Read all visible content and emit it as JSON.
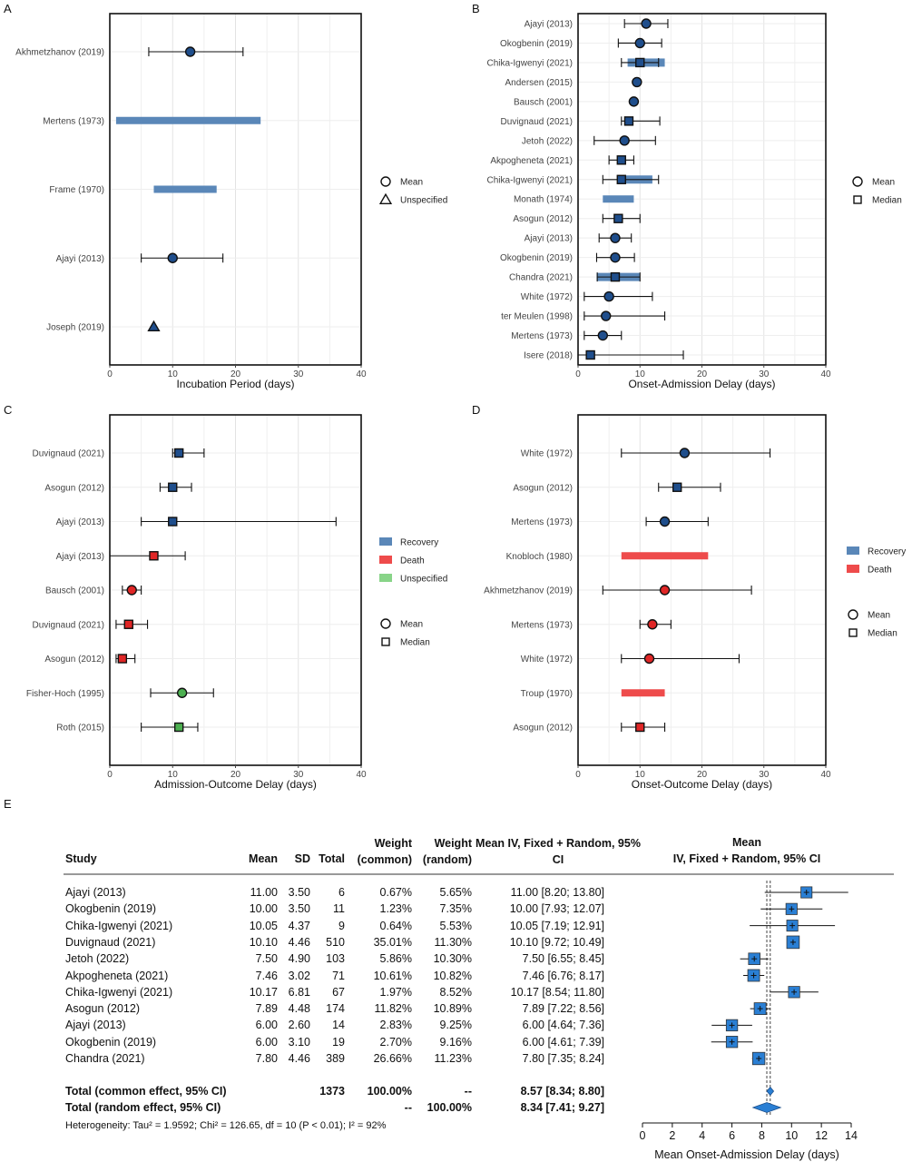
{
  "panel_letters": [
    "A",
    "B",
    "C",
    "D",
    "E"
  ],
  "chart_data": [
    {
      "id": "A",
      "type": "interval-forest",
      "panel_label": "A",
      "xlabel": "Incubation Period (days)",
      "xlim": [
        0,
        40
      ],
      "xticks": [
        0,
        10,
        20,
        30,
        40
      ],
      "grid": true,
      "legend": {
        "placement": "right",
        "shape_items": [
          {
            "shape": "circle",
            "label": "Mean"
          },
          {
            "shape": "triangle",
            "label": "Unspecified"
          }
        ],
        "color_items": []
      },
      "rows": [
        {
          "study": "Akhmetzhanov (2019)",
          "kind": "point",
          "value": 12.8,
          "shape": "circle",
          "lo": 6.2,
          "hi": 21.2,
          "color": "#1f4e8c"
        },
        {
          "study": "Mertens (1973)",
          "kind": "range",
          "lo": 1,
          "hi": 24,
          "color": "#5a87b8"
        },
        {
          "study": "Frame (1970)",
          "kind": "range",
          "lo": 7,
          "hi": 17,
          "color": "#5a87b8"
        },
        {
          "study": "Ajayi (2013)",
          "kind": "point",
          "value": 10,
          "shape": "circle",
          "lo": 5,
          "hi": 18,
          "color": "#1f4e8c"
        },
        {
          "study": "Joseph (2019)",
          "kind": "point",
          "value": 7,
          "shape": "triangle",
          "color": "#1f4e8c"
        }
      ]
    },
    {
      "id": "B",
      "type": "interval-forest",
      "panel_label": "B",
      "xlabel": "Onset-Admission Delay (days)",
      "xlim": [
        0,
        40
      ],
      "xticks": [
        0,
        10,
        20,
        30,
        40
      ],
      "grid": true,
      "legend": {
        "placement": "right",
        "shape_items": [
          {
            "shape": "circle",
            "label": "Mean"
          },
          {
            "shape": "square",
            "label": "Median"
          }
        ],
        "color_items": []
      },
      "rows": [
        {
          "study": "Ajayi (2013)",
          "kind": "point",
          "value": 11,
          "shape": "circle",
          "lo": 7.5,
          "hi": 14.5,
          "color": "#1f4e8c"
        },
        {
          "study": "Okogbenin (2019)",
          "kind": "point",
          "value": 10,
          "shape": "circle",
          "lo": 6.5,
          "hi": 13.5,
          "color": "#1f4e8c"
        },
        {
          "study": "Chika-Igwenyi (2021)",
          "kind": "point",
          "value": 10,
          "shape": "square",
          "lo": 7,
          "hi": 13,
          "range_lo": 8,
          "range_hi": 14,
          "color": "#1f4e8c"
        },
        {
          "study": "Andersen (2015)",
          "kind": "point",
          "value": 9.5,
          "shape": "circle",
          "color": "#1f4e8c"
        },
        {
          "study": "Bausch (2001)",
          "kind": "point",
          "value": 9,
          "shape": "circle",
          "color": "#1f4e8c"
        },
        {
          "study": "Duvignaud (2021)",
          "kind": "point",
          "value": 8.2,
          "shape": "square",
          "lo": 7,
          "hi": 13.2,
          "color": "#1f4e8c"
        },
        {
          "study": "Jetoh (2022)",
          "kind": "point",
          "value": 7.5,
          "shape": "circle",
          "lo": 2.6,
          "hi": 12.5,
          "color": "#1f4e8c"
        },
        {
          "study": "Akpogheneta (2021)",
          "kind": "point",
          "value": 7,
          "shape": "square",
          "lo": 5,
          "hi": 9,
          "color": "#1f4e8c"
        },
        {
          "study": "Chika-Igwenyi (2021)",
          "kind": "point",
          "value": 7,
          "shape": "square",
          "lo": 4,
          "hi": 13,
          "range_lo": 7,
          "range_hi": 12,
          "color": "#1f4e8c"
        },
        {
          "study": "Monath (1974)",
          "kind": "range",
          "lo": 4,
          "hi": 9,
          "color": "#5a87b8"
        },
        {
          "study": "Asogun (2012)",
          "kind": "point",
          "value": 6.5,
          "shape": "square",
          "lo": 4,
          "hi": 10,
          "color": "#1f4e8c"
        },
        {
          "study": "Ajayi (2013)",
          "kind": "point",
          "value": 6,
          "shape": "circle",
          "lo": 3.4,
          "hi": 8.6,
          "color": "#1f4e8c"
        },
        {
          "study": "Okogbenin (2019)",
          "kind": "point",
          "value": 6,
          "shape": "circle",
          "lo": 3,
          "hi": 9.1,
          "color": "#1f4e8c"
        },
        {
          "study": "Chandra (2021)",
          "kind": "point",
          "value": 6,
          "shape": "square",
          "lo": 3.1,
          "hi": 10,
          "range_lo": 3,
          "range_hi": 10,
          "color": "#1f4e8c"
        },
        {
          "study": "White (1972)",
          "kind": "point",
          "value": 5,
          "shape": "circle",
          "lo": 1,
          "hi": 12,
          "color": "#1f4e8c"
        },
        {
          "study": "ter Meulen (1998)",
          "kind": "point",
          "value": 4.5,
          "shape": "circle",
          "lo": 1,
          "hi": 14,
          "color": "#1f4e8c"
        },
        {
          "study": "Mertens (1973)",
          "kind": "point",
          "value": 4,
          "shape": "circle",
          "lo": 1,
          "hi": 7,
          "color": "#1f4e8c"
        },
        {
          "study": "Isere (2018)",
          "kind": "point",
          "value": 2,
          "shape": "square",
          "lo": 0,
          "hi": 17,
          "color": "#1f4e8c"
        }
      ]
    },
    {
      "id": "C",
      "type": "interval-forest",
      "panel_label": "C",
      "xlabel": "Admission-Outcome Delay (days)",
      "xlim": [
        0,
        40
      ],
      "xticks": [
        0,
        10,
        20,
        30,
        40
      ],
      "grid": true,
      "legend": {
        "placement": "right",
        "color_items": [
          {
            "color": "#5a87b8",
            "label": "Recovery"
          },
          {
            "color": "#ee4b4b",
            "label": "Death"
          },
          {
            "color": "#88d488",
            "label": "Unspecified"
          }
        ],
        "shape_items": [
          {
            "shape": "circle",
            "label": "Mean"
          },
          {
            "shape": "square",
            "label": "Median"
          }
        ]
      },
      "rows": [
        {
          "study": "Duvignaud (2021)",
          "kind": "point",
          "value": 11,
          "shape": "square",
          "lo": 10,
          "hi": 15,
          "color": "#1f4e8c"
        },
        {
          "study": "Asogun (2012)",
          "kind": "point",
          "value": 10,
          "shape": "square",
          "lo": 8,
          "hi": 13,
          "color": "#1f4e8c"
        },
        {
          "study": "Ajayi (2013)",
          "kind": "point",
          "value": 10,
          "shape": "square",
          "lo": 5,
          "hi": 36,
          "color": "#1f4e8c"
        },
        {
          "study": "Ajayi (2013)",
          "kind": "point",
          "value": 7,
          "shape": "square",
          "lo": 0,
          "hi": 12,
          "color": "#e02626"
        },
        {
          "study": "Bausch (2001)",
          "kind": "point",
          "value": 3.5,
          "shape": "circle",
          "lo": 2,
          "hi": 5,
          "color": "#e02626"
        },
        {
          "study": "Duvignaud (2021)",
          "kind": "point",
          "value": 3,
          "shape": "square",
          "lo": 1,
          "hi": 6,
          "color": "#e02626"
        },
        {
          "study": "Asogun (2012)",
          "kind": "point",
          "value": 2,
          "shape": "square",
          "lo": 1,
          "hi": 4,
          "color": "#e02626"
        },
        {
          "study": "Fisher-Hoch (1995)",
          "kind": "point",
          "value": 11.5,
          "shape": "circle",
          "lo": 6.5,
          "hi": 16.5,
          "color": "#4caf50"
        },
        {
          "study": "Roth (2015)",
          "kind": "point",
          "value": 11,
          "shape": "square",
          "lo": 5,
          "hi": 14,
          "color": "#4caf50"
        }
      ]
    },
    {
      "id": "D",
      "type": "interval-forest",
      "panel_label": "D",
      "xlabel": "Onset-Outcome Delay (days)",
      "xlim": [
        0,
        40
      ],
      "xticks": [
        0,
        10,
        20,
        30,
        40
      ],
      "grid": true,
      "legend": {
        "placement": "right",
        "color_items": [
          {
            "color": "#5a87b8",
            "label": "Recovery"
          },
          {
            "color": "#ee4b4b",
            "label": "Death"
          }
        ],
        "shape_items": [
          {
            "shape": "circle",
            "label": "Mean"
          },
          {
            "shape": "square",
            "label": "Median"
          }
        ]
      },
      "rows": [
        {
          "study": "White (1972)",
          "kind": "point",
          "value": 17.2,
          "shape": "circle",
          "lo": 7,
          "hi": 31,
          "color": "#1f4e8c"
        },
        {
          "study": "Asogun (2012)",
          "kind": "point",
          "value": 16,
          "shape": "square",
          "lo": 13,
          "hi": 23,
          "color": "#1f4e8c"
        },
        {
          "study": "Mertens (1973)",
          "kind": "point",
          "value": 14,
          "shape": "circle",
          "lo": 11,
          "hi": 21,
          "color": "#1f4e8c"
        },
        {
          "study": "Knobloch (1980)",
          "kind": "range",
          "lo": 7,
          "hi": 21,
          "color": "#ee4b4b"
        },
        {
          "study": "Akhmetzhanov (2019)",
          "kind": "point",
          "value": 14,
          "shape": "circle",
          "lo": 4,
          "hi": 28,
          "color": "#e02626"
        },
        {
          "study": "Mertens (1973)",
          "kind": "point",
          "value": 12,
          "shape": "circle",
          "lo": 10,
          "hi": 15,
          "color": "#e02626"
        },
        {
          "study": "White (1972)",
          "kind": "point",
          "value": 11.5,
          "shape": "circle",
          "lo": 7,
          "hi": 26,
          "color": "#e02626"
        },
        {
          "study": "Troup (1970)",
          "kind": "range",
          "lo": 7,
          "hi": 14,
          "color": "#ee4b4b"
        },
        {
          "study": "Asogun (2012)",
          "kind": "point",
          "value": 10,
          "shape": "square",
          "lo": 7,
          "hi": 14,
          "color": "#e02626"
        }
      ]
    },
    {
      "id": "E",
      "type": "forest",
      "panel_label": "E",
      "columns": [
        "Study",
        "Mean",
        "SD",
        "Total",
        "Weight (common)",
        "Weight (random)",
        "Mean IV, Fixed + Random, 95% CI"
      ],
      "plot_header": "Mean IV, Fixed + Random, 95% CI",
      "xlabel": "Mean Onset-Admission Delay (days)",
      "xlim": [
        0,
        14
      ],
      "xticks": [
        0,
        2,
        4,
        6,
        8,
        10,
        12,
        14
      ],
      "common_line": 8.57,
      "random_line": 8.34,
      "marker_color": "#2a7fd4",
      "studies": [
        {
          "study": "Ajayi (2013)",
          "mean": "11.00",
          "sd": "3.50",
          "total": "6",
          "w_common": "0.67%",
          "w_random": "5.65%",
          "ci_text": "11.00 [8.20; 13.80]",
          "est": 11.0,
          "lo": 8.2,
          "hi": 13.8,
          "w": 0.67
        },
        {
          "study": "Okogbenin (2019)",
          "mean": "10.00",
          "sd": "3.50",
          "total": "11",
          "w_common": "1.23%",
          "w_random": "7.35%",
          "ci_text": "10.00 [7.93; 12.07]",
          "est": 10.0,
          "lo": 7.93,
          "hi": 12.07,
          "w": 1.23
        },
        {
          "study": "Chika-Igwenyi (2021)",
          "mean": "10.05",
          "sd": "4.37",
          "total": "9",
          "w_common": "0.64%",
          "w_random": "5.53%",
          "ci_text": "10.05 [7.19; 12.91]",
          "est": 10.05,
          "lo": 7.19,
          "hi": 12.91,
          "w": 0.64
        },
        {
          "study": "Duvignaud (2021)",
          "mean": "10.10",
          "sd": "4.46",
          "total": "510",
          "w_common": "35.01%",
          "w_random": "11.30%",
          "ci_text": "10.10 [9.72; 10.49]",
          "est": 10.1,
          "lo": 9.72,
          "hi": 10.49,
          "w": 35.01
        },
        {
          "study": "Jetoh (2022)",
          "mean": "7.50",
          "sd": "4.90",
          "total": "103",
          "w_common": "5.86%",
          "w_random": "10.30%",
          "ci_text": "7.50 [6.55; 8.45]",
          "est": 7.5,
          "lo": 6.55,
          "hi": 8.45,
          "w": 5.86
        },
        {
          "study": "Akpogheneta (2021)",
          "mean": "7.46",
          "sd": "3.02",
          "total": "71",
          "w_common": "10.61%",
          "w_random": "10.82%",
          "ci_text": "7.46 [6.76; 8.17]",
          "est": 7.46,
          "lo": 6.76,
          "hi": 8.17,
          "w": 10.61
        },
        {
          "study": "Chika-Igwenyi (2021)",
          "mean": "10.17",
          "sd": "6.81",
          "total": "67",
          "w_common": "1.97%",
          "w_random": "8.52%",
          "ci_text": "10.17 [8.54; 11.80]",
          "est": 10.17,
          "lo": 8.54,
          "hi": 11.8,
          "w": 1.97
        },
        {
          "study": "Asogun (2012)",
          "mean": "7.89",
          "sd": "4.48",
          "total": "174",
          "w_common": "11.82%",
          "w_random": "10.89%",
          "ci_text": "7.89 [7.22; 8.56]",
          "est": 7.89,
          "lo": 7.22,
          "hi": 8.56,
          "w": 11.82
        },
        {
          "study": "Ajayi (2013)",
          "mean": "6.00",
          "sd": "2.60",
          "total": "14",
          "w_common": "2.83%",
          "w_random": "9.25%",
          "ci_text": "6.00 [4.64; 7.36]",
          "est": 6.0,
          "lo": 4.64,
          "hi": 7.36,
          "w": 2.83
        },
        {
          "study": "Okogbenin (2019)",
          "mean": "6.00",
          "sd": "3.10",
          "total": "19",
          "w_common": "2.70%",
          "w_random": "9.16%",
          "ci_text": "6.00 [4.61; 7.39]",
          "est": 6.0,
          "lo": 4.61,
          "hi": 7.39,
          "w": 2.7
        },
        {
          "study": "Chandra (2021)",
          "mean": "7.80",
          "sd": "4.46",
          "total": "389",
          "w_common": "26.66%",
          "w_random": "11.23%",
          "ci_text": "7.80 [7.35; 8.24]",
          "est": 7.8,
          "lo": 7.35,
          "hi": 8.24,
          "w": 26.66
        }
      ],
      "totals": [
        {
          "label": "Total (common effect, 95% CI)",
          "total": "1373",
          "w_common": "100.00%",
          "w_random": "--",
          "ci_text": "8.57 [8.34; 8.80]",
          "est": 8.57,
          "lo": 8.34,
          "hi": 8.8
        },
        {
          "label": "Total (random effect, 95% CI)",
          "total": "",
          "w_common": "--",
          "w_random": "100.00%",
          "ci_text": "8.34 [7.41; 9.27]",
          "est": 8.34,
          "lo": 7.41,
          "hi": 9.27
        }
      ],
      "heterogeneity": "Heterogeneity: Tau² = 1.9592; Chi² = 126.65, df = 10 (P < 0.01); I² = 92%"
    }
  ]
}
